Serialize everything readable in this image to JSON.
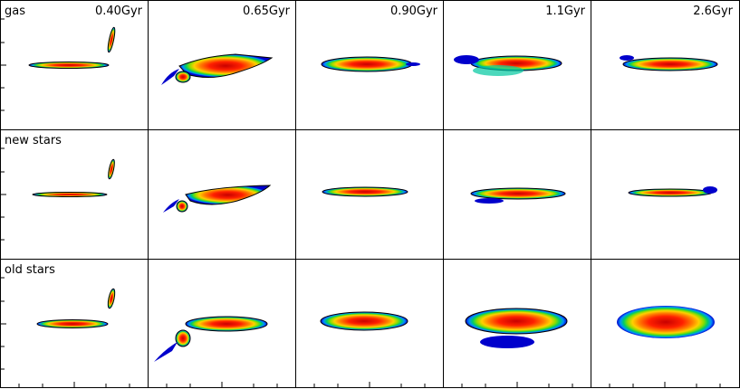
{
  "figure": {
    "columns": [
      {
        "time_label": "0.40Gyr"
      },
      {
        "time_label": "0.65Gyr"
      },
      {
        "time_label": "0.90Gyr"
      },
      {
        "time_label": "1.1Gyr"
      },
      {
        "time_label": "2.6Gyr"
      }
    ],
    "rows": [
      {
        "component_label": "gas"
      },
      {
        "component_label": "new stars"
      },
      {
        "component_label": "old stars"
      }
    ],
    "colormap": [
      "#0000cc",
      "#0090ff",
      "#00c8a0",
      "#22cc22",
      "#aadd00",
      "#ffd000",
      "#ff8000",
      "#ff2000",
      "#d00000"
    ]
  }
}
